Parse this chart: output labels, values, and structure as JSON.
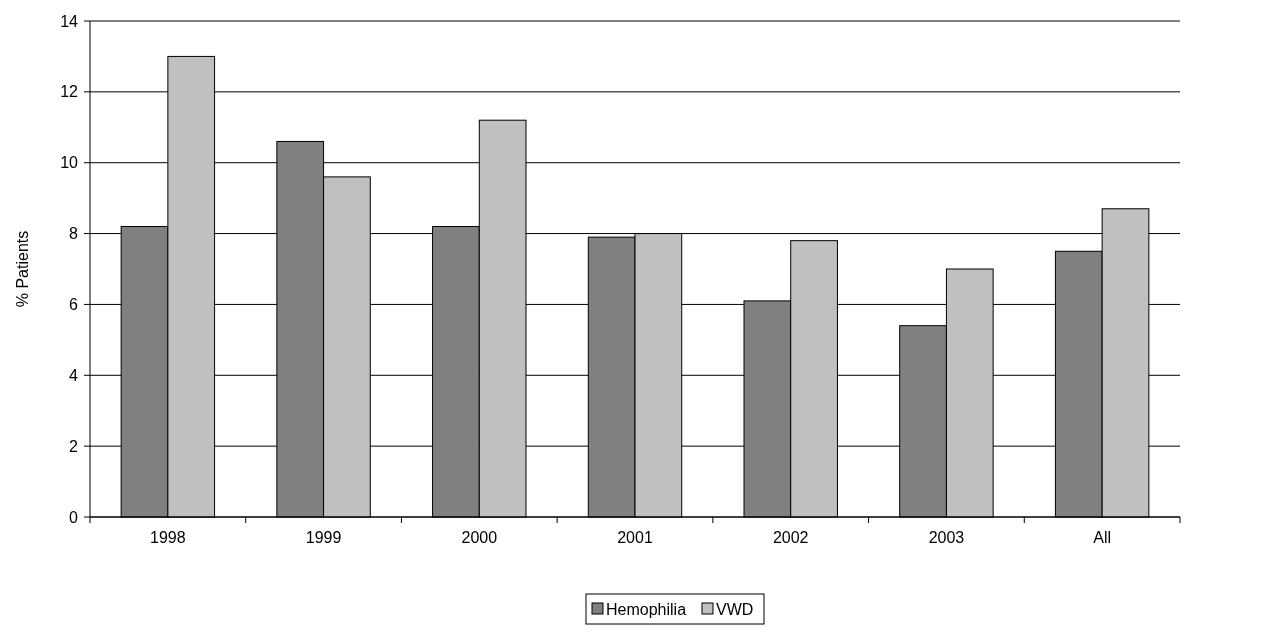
{
  "chart_data": {
    "type": "bar",
    "ylabel": "% Patients",
    "categories": [
      "1998",
      "1999",
      "2000",
      "2001",
      "2002",
      "2003",
      "All"
    ],
    "series": [
      {
        "name": "Hemophilia",
        "color": "#808080",
        "values": [
          8.2,
          10.6,
          8.2,
          7.9,
          6.1,
          5.4,
          7.5
        ]
      },
      {
        "name": "VWD",
        "color": "#c0c0c0",
        "values": [
          13.0,
          9.6,
          11.2,
          8.0,
          7.8,
          7.0,
          8.7
        ]
      }
    ],
    "ylim": [
      0,
      14
    ],
    "yticks": [
      0,
      2,
      4,
      6,
      8,
      10,
      12,
      14
    ],
    "grid": "y",
    "legend": "bottom"
  }
}
